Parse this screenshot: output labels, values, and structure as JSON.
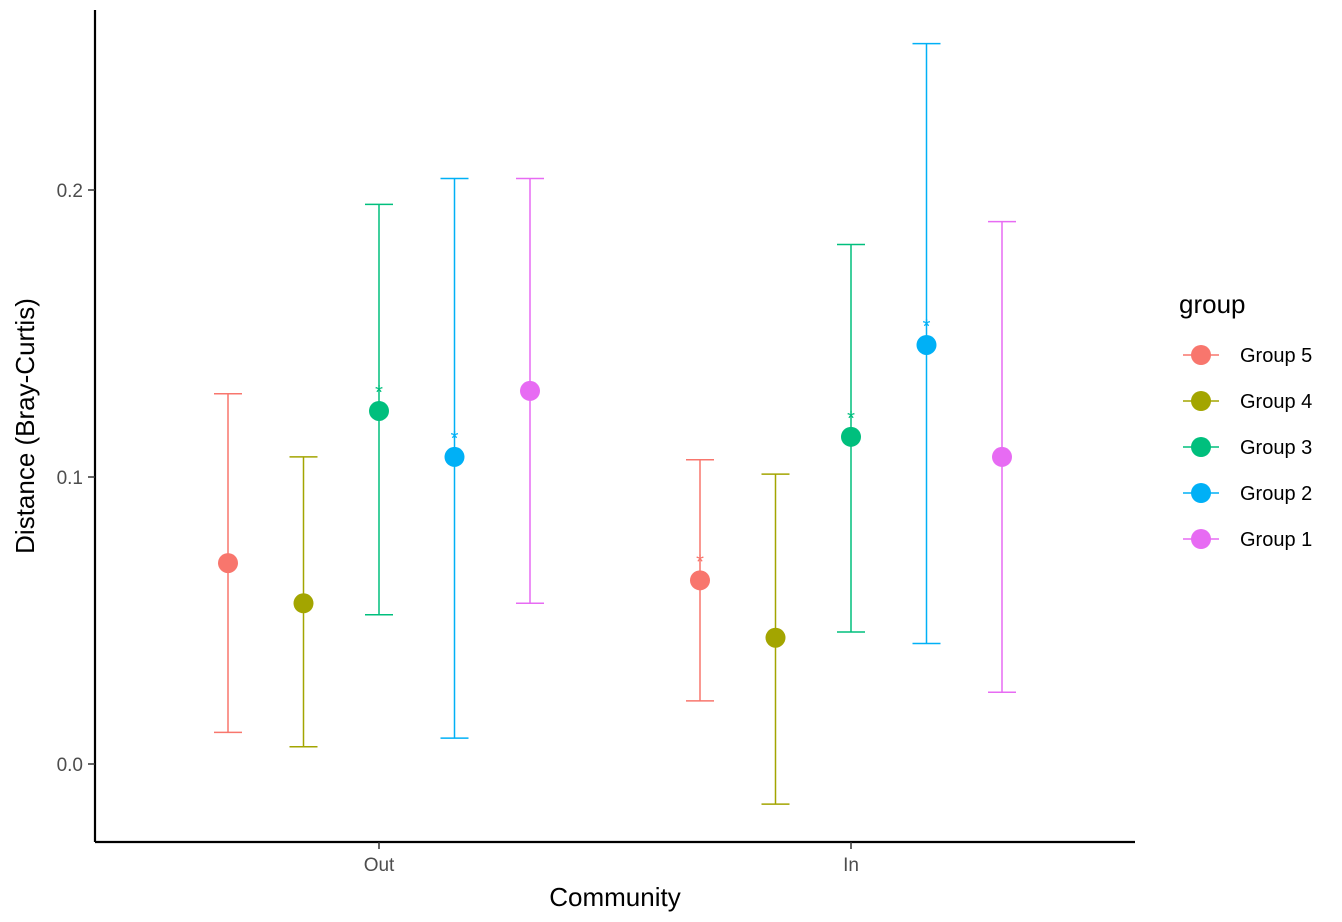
{
  "chart_data": {
    "type": "scatter",
    "subtype": "point-with-errorbars",
    "title": "",
    "xlabel": "Community",
    "ylabel": "Distance (Bray-Curtis)",
    "categories": [
      "Out",
      "In"
    ],
    "ylim": [
      -0.027,
      0.265
    ],
    "yticks": [
      0.0,
      0.1,
      0.2
    ],
    "ytick_labels": [
      "0.0",
      "0.1",
      "0.2"
    ],
    "legend_title": "group",
    "legend_position": "right",
    "significance_marker": "*",
    "series": [
      {
        "name": "Group 5",
        "color": "#F8766D",
        "points": [
          {
            "category": "Out",
            "mean": 0.07,
            "lower": 0.011,
            "upper": 0.129,
            "significant": false
          },
          {
            "category": "In",
            "mean": 0.064,
            "lower": 0.022,
            "upper": 0.106,
            "significant": true
          }
        ]
      },
      {
        "name": "Group 4",
        "color": "#A3A500",
        "points": [
          {
            "category": "Out",
            "mean": 0.056,
            "lower": 0.006,
            "upper": 0.107,
            "significant": false
          },
          {
            "category": "In",
            "mean": 0.044,
            "lower": -0.014,
            "upper": 0.101,
            "significant": false
          }
        ]
      },
      {
        "name": "Group 3",
        "color": "#00BF7D",
        "points": [
          {
            "category": "Out",
            "mean": 0.123,
            "lower": 0.052,
            "upper": 0.195,
            "significant": true
          },
          {
            "category": "In",
            "mean": 0.114,
            "lower": 0.046,
            "upper": 0.181,
            "significant": true
          }
        ]
      },
      {
        "name": "Group 2",
        "color": "#00B0F6",
        "points": [
          {
            "category": "Out",
            "mean": 0.107,
            "lower": 0.009,
            "upper": 0.204,
            "significant": true
          },
          {
            "category": "In",
            "mean": 0.146,
            "lower": 0.042,
            "upper": 0.251,
            "significant": true
          }
        ]
      },
      {
        "name": "Group 1",
        "color": "#E76BF3",
        "points": [
          {
            "category": "Out",
            "mean": 0.13,
            "lower": 0.056,
            "upper": 0.204,
            "significant": false
          },
          {
            "category": "In",
            "mean": 0.107,
            "lower": 0.025,
            "upper": 0.189,
            "significant": false
          }
        ]
      }
    ]
  }
}
